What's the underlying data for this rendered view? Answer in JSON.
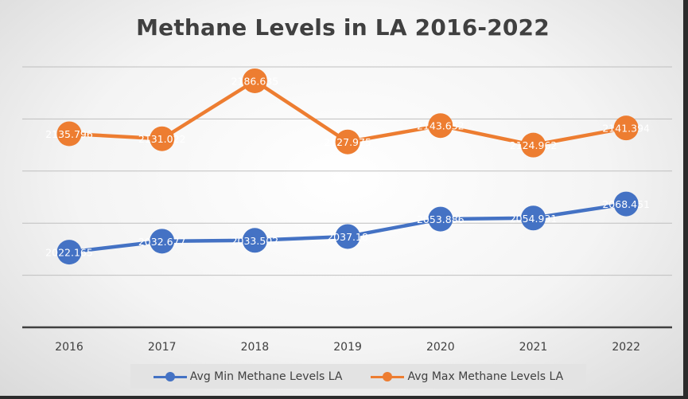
{
  "chart_data": {
    "type": "line",
    "title": "Methane Levels in LA 2016-2022",
    "categories": [
      "2016",
      "2017",
      "2018",
      "2019",
      "2020",
      "2021",
      "2022"
    ],
    "series": [
      {
        "name": "Avg Min Methane Levels LA",
        "color": "#4472c4",
        "values": [
          2022.165,
          2032.677,
          2033.502,
          2037.18,
          2053.886,
          2054.931,
          2068.451
        ],
        "labels": [
          "2022.165",
          "2032.677",
          "2033.502",
          "2037.18",
          "2053.886",
          "2054.931",
          "2068.451"
        ]
      },
      {
        "name": "Avg Max Methane Levels LA",
        "color": "#ed7d31",
        "values": [
          2135.796,
          2131.022,
          2186.635,
          2127.975,
          2143.652,
          2124.962,
          2141.394
        ],
        "labels": [
          "2135.796",
          "2131.022",
          "2186.635",
          "2127.975",
          "2143.652",
          "2124.962",
          "2141.394"
        ]
      }
    ],
    "ylim": [
      1950,
      2200
    ],
    "grid": true,
    "legend": "bottom",
    "axis_color": "#404040",
    "gridline_color": "#bfbfbf"
  }
}
